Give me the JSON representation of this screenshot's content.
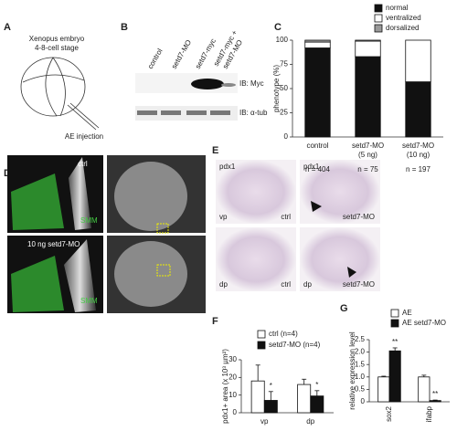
{
  "panel_labels": [
    "A",
    "B",
    "C",
    "D",
    "E",
    "F",
    "G"
  ],
  "panel_a": {
    "lines": [
      "Xenopus embryo",
      "4-8-cell stage"
    ],
    "injection": "AE injection"
  },
  "panel_b": {
    "lanes": [
      [
        "control"
      ],
      [
        "setd7-MO"
      ],
      [
        "setd7-myc"
      ],
      [
        "setd7-myc +",
        "setd7-MO"
      ]
    ],
    "blots": [
      "IB: Myc",
      "IB: α-tub"
    ]
  },
  "panel_d": {
    "top": [
      "ctrl",
      "SMM"
    ],
    "bottom": [
      "10 ng setd7-MO",
      "SMM"
    ]
  },
  "panel_e": {
    "images": [
      [
        "pdx1",
        "vp",
        "ctrl"
      ],
      [
        "pdx1",
        "",
        "setd7-MO"
      ],
      [
        "",
        "dp",
        "ctrl"
      ],
      [
        "",
        "dp",
        "setd7-MO"
      ]
    ]
  },
  "chart_data": [
    {
      "type": "stacked_bar",
      "y_label": "phenotype (%)",
      "categories": [
        [
          "control"
        ],
        [
          "setd7-MO",
          "(5 ng)"
        ],
        [
          "setd7-MO",
          "(10 ng)"
        ]
      ],
      "n_labels": [
        "n = 404",
        "n = 75",
        "n = 197"
      ],
      "series": [
        {
          "name": "normal",
          "color": "#111111",
          "values": [
            92,
            83,
            57
          ]
        },
        {
          "name": "ventralized",
          "color": "#ffffff",
          "values": [
            6,
            16,
            43
          ]
        },
        {
          "name": "dorsalized",
          "color": "#999999",
          "values": [
            2,
            1,
            0
          ]
        }
      ],
      "ylim": [
        0,
        100
      ],
      "yticks": [
        0,
        25,
        50,
        75,
        100
      ]
    },
    {
      "type": "bar",
      "y_label": "pdx1+ area (x 10³ µm²)",
      "categories": [
        "vp",
        "dp"
      ],
      "series": [
        {
          "name": "ctrl (n=4)",
          "color": "#ffffff",
          "values": [
            18,
            16
          ],
          "errors": [
            9,
            3
          ]
        },
        {
          "name": "setd7-MO (n=4)",
          "color": "#111111",
          "values": [
            7,
            9.5
          ],
          "errors": [
            5,
            3
          ]
        }
      ],
      "annotations": [
        "*",
        "*"
      ],
      "ylim": [
        0,
        30
      ],
      "yticks": [
        0,
        10,
        20,
        30
      ]
    },
    {
      "type": "bar",
      "y_label": "relative expression level",
      "categories": [
        "sox2",
        "ifabp"
      ],
      "series": [
        {
          "name": "AE",
          "color": "#ffffff",
          "values": [
            1.0,
            1.0
          ],
          "errors": [
            0.03,
            0.07
          ]
        },
        {
          "name": "AE setd7-MO",
          "color": "#111111",
          "values": [
            2.05,
            0.05
          ],
          "errors": [
            0.12,
            0.02
          ]
        }
      ],
      "annotations": [
        "**",
        "**"
      ],
      "ylim": [
        0,
        2.5
      ],
      "yticks": [
        0,
        0.5,
        {
          "value": 1,
          "label": "1.0"
        },
        1.5,
        {
          "value": 2,
          "label": "2.0"
        },
        2.5
      ]
    }
  ]
}
